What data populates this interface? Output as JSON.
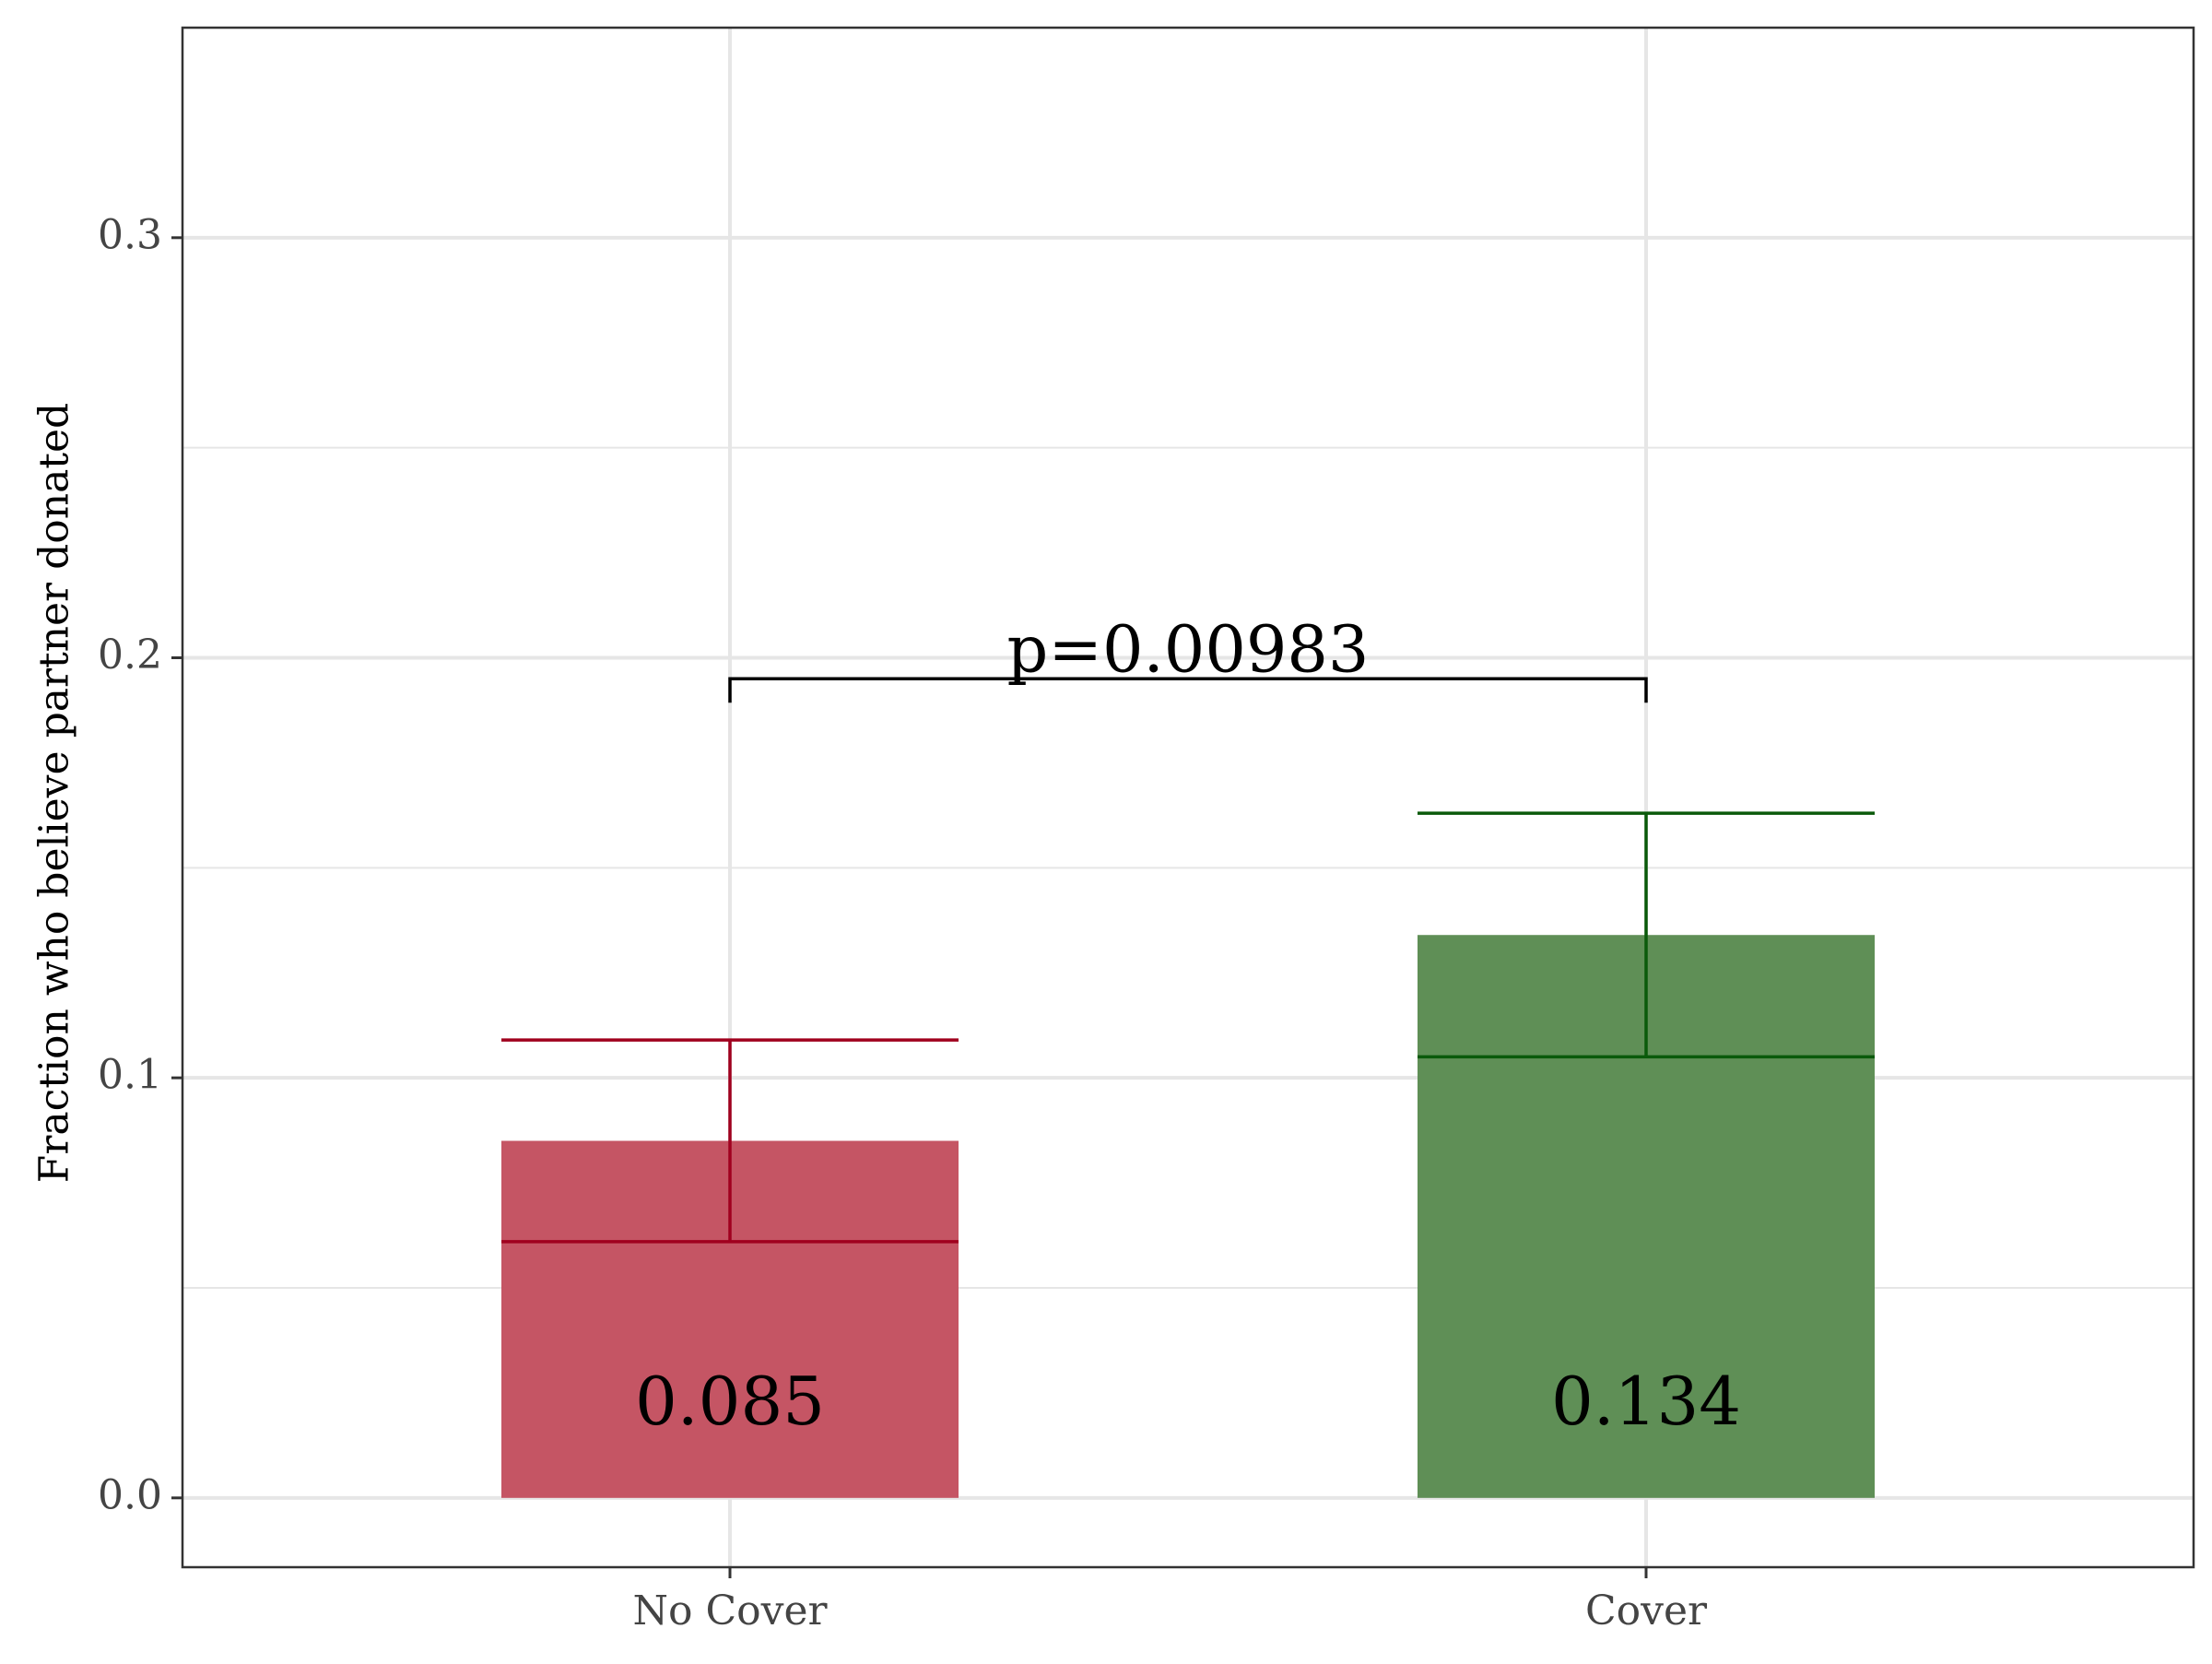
{
  "chart_data": {
    "type": "bar",
    "title": "",
    "xlabel": "",
    "ylabel": "Fraction who believe partner donated",
    "categories": [
      "No Cover",
      "Cover"
    ],
    "values": [
      0.085,
      0.134
    ],
    "data_labels": [
      "0.085",
      "0.134"
    ],
    "error_bars": [
      {
        "lower": 0.061,
        "upper": 0.109
      },
      {
        "lower": 0.105,
        "upper": 0.163
      }
    ],
    "ylim": [
      -0.0165,
      0.35
    ],
    "y_ticks": [
      0.0,
      0.1,
      0.2,
      0.3
    ],
    "y_tick_labels": [
      "0.0",
      "0.1",
      "0.2",
      "0.3"
    ],
    "grid": true,
    "annotation": {
      "text": "p=0.00983",
      "bracket_y": 0.195,
      "from": "No Cover",
      "to": "Cover"
    },
    "colors": {
      "bars": [
        "#c55564",
        "#5f8f56"
      ],
      "error_bars": [
        "#a0001e",
        "#0a5a0a"
      ],
      "grid": "#e6e6e6",
      "axis": "#333333",
      "tick_text": "#444444"
    }
  }
}
